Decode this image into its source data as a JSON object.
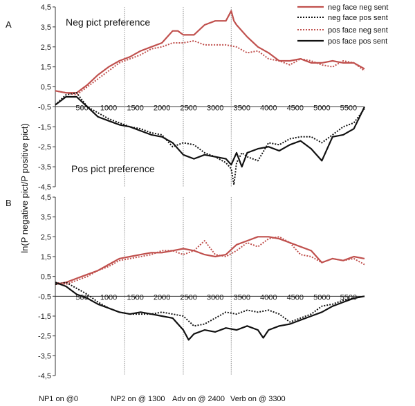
{
  "colors": {
    "red": "#c0504d",
    "black": "#111111",
    "marker": "#9a9a9a"
  },
  "ylabel": "ln(P negative pict/P positive pict)",
  "legend": [
    {
      "label": "neg face neg sent",
      "color": "#c0504d",
      "dash": "solid"
    },
    {
      "label": "neg face pos sent",
      "color": "#111111",
      "dash": "dotted"
    },
    {
      "label": "pos face neg sent",
      "color": "#c0504d",
      "dash": "dotted"
    },
    {
      "label": "pos face pos sent",
      "color": "#111111",
      "dash": "solid"
    }
  ],
  "markers": [
    {
      "x": 0,
      "label": "NP1 on @0"
    },
    {
      "x": 1300,
      "label": "NP2 on @ 1300"
    },
    {
      "x": 2400,
      "label": "Adv on @ 2400"
    },
    {
      "x": 3300,
      "label": "Verb on @ 3300"
    }
  ],
  "chart_data": [
    {
      "panel": "A",
      "type": "line",
      "xlim": [
        0,
        5800
      ],
      "ylim": [
        -4.5,
        4.5
      ],
      "xticks": [
        500,
        1000,
        1500,
        2000,
        2500,
        3000,
        3500,
        4000,
        4500,
        5000,
        5500
      ],
      "xtick_labels": [
        "500",
        "1000",
        "1500",
        "2000",
        "2500",
        "3000",
        "3500",
        "4000",
        "4500",
        "5000",
        "5500"
      ],
      "yticks": [
        4.5,
        3.5,
        2.5,
        1.5,
        0.5,
        -0.5,
        -1.5,
        -2.5,
        -3.5,
        -4.5
      ],
      "ytick_labels": [
        "4,5",
        "3,5",
        "2,5",
        "1,5",
        "0,5",
        "-0,5",
        "-1,5",
        "-2,5",
        "-3,5",
        "-4,5"
      ],
      "annotations": [
        "Neg pict preference",
        "Pos pict preference"
      ],
      "series": [
        {
          "name": "neg face neg sent",
          "color": "#c0504d",
          "dash": "solid",
          "x": [
            0,
            200,
            400,
            600,
            800,
            1000,
            1200,
            1400,
            1600,
            1800,
            2000,
            2200,
            2300,
            2350,
            2400,
            2600,
            2800,
            3000,
            3200,
            3300,
            3350,
            3400,
            3600,
            3800,
            4000,
            4200,
            4400,
            4600,
            4800,
            5000,
            5200,
            5400,
            5600,
            5800
          ],
          "y": [
            0.3,
            0.2,
            0.2,
            0.6,
            1.1,
            1.5,
            1.8,
            2.0,
            2.3,
            2.5,
            2.7,
            3.3,
            3.3,
            3.2,
            3.1,
            3.1,
            3.6,
            3.8,
            3.8,
            4.3,
            3.8,
            3.6,
            3.0,
            2.5,
            2.2,
            1.8,
            1.8,
            1.9,
            1.7,
            1.7,
            1.8,
            1.7,
            1.7,
            1.4
          ]
        },
        {
          "name": "neg face pos sent",
          "color": "#111111",
          "dash": "dotted",
          "x": [
            0,
            200,
            400,
            600,
            800,
            1000,
            1200,
            1400,
            1600,
            1800,
            2000,
            2200,
            2400,
            2600,
            2800,
            3000,
            3200,
            3300,
            3350,
            3400,
            3500,
            3600,
            3800,
            4000,
            4200,
            4400,
            4600,
            4800,
            5000,
            5200,
            5400,
            5600,
            5800
          ],
          "y": [
            -0.4,
            0.1,
            0.2,
            -0.5,
            -0.8,
            -1.1,
            -1.3,
            -1.5,
            -1.6,
            -1.8,
            -1.9,
            -2.5,
            -2.3,
            -2.4,
            -2.8,
            -3.0,
            -3.3,
            -3.6,
            -4.4,
            -3.3,
            -2.8,
            -3.0,
            -3.2,
            -2.3,
            -2.4,
            -2.1,
            -2.0,
            -2.0,
            -2.3,
            -1.9,
            -1.5,
            -1.3,
            -0.6
          ]
        },
        {
          "name": "pos face neg sent",
          "color": "#c0504d",
          "dash": "dotted",
          "x": [
            0,
            200,
            400,
            600,
            800,
            1000,
            1200,
            1400,
            1600,
            1800,
            2000,
            2200,
            2400,
            2600,
            2800,
            3000,
            3200,
            3400,
            3600,
            3800,
            4000,
            4200,
            4400,
            4600,
            4800,
            5000,
            5200,
            5400,
            5600,
            5800
          ],
          "y": [
            0.3,
            0.2,
            0.1,
            0.5,
            0.9,
            1.3,
            1.7,
            1.9,
            2.1,
            2.4,
            2.5,
            2.7,
            2.7,
            2.8,
            2.6,
            2.6,
            2.6,
            2.5,
            2.2,
            2.3,
            1.9,
            1.8,
            1.6,
            1.9,
            1.8,
            1.6,
            1.5,
            1.8,
            1.7,
            1.3
          ]
        },
        {
          "name": "pos face pos sent",
          "color": "#111111",
          "dash": "solid",
          "x": [
            0,
            200,
            400,
            600,
            800,
            1000,
            1200,
            1400,
            1600,
            1800,
            2000,
            2200,
            2400,
            2600,
            2800,
            3000,
            3200,
            3300,
            3400,
            3500,
            3600,
            3800,
            4000,
            4200,
            4400,
            4600,
            4800,
            5000,
            5200,
            5400,
            5600,
            5800
          ],
          "y": [
            -0.4,
            0.0,
            0.0,
            -0.5,
            -1.0,
            -1.2,
            -1.4,
            -1.5,
            -1.7,
            -1.9,
            -2.0,
            -2.3,
            -2.9,
            -3.1,
            -2.9,
            -3.0,
            -3.1,
            -3.4,
            -2.8,
            -3.5,
            -2.8,
            -2.6,
            -2.5,
            -2.7,
            -2.4,
            -2.2,
            -2.6,
            -3.2,
            -2.0,
            -1.9,
            -1.6,
            -0.5
          ]
        }
      ]
    },
    {
      "panel": "B",
      "type": "line",
      "xlim": [
        0,
        5800
      ],
      "ylim": [
        -4.5,
        4.5
      ],
      "xticks": [
        500,
        1000,
        1500,
        2000,
        2500,
        3000,
        3500,
        4000,
        4500,
        5000,
        5500
      ],
      "xtick_labels": [
        "500",
        "1000",
        "1500",
        "2000",
        "2500",
        "3000",
        "3500",
        "4000",
        "4500",
        "5000",
        "5500"
      ],
      "yticks": [
        4.5,
        3.5,
        2.5,
        1.5,
        0.5,
        -0.5,
        -1.5,
        -2.5,
        -3.5,
        -4.5
      ],
      "ytick_labels": [
        "4,5",
        "3,5",
        "2,5",
        "1,5",
        "0,5",
        "-0,5",
        "-1,5",
        "-2,5",
        "-3,5",
        "-4,5"
      ],
      "series": [
        {
          "name": "neg face neg sent",
          "color": "#c0504d",
          "dash": "solid",
          "x": [
            0,
            200,
            400,
            600,
            800,
            1000,
            1200,
            1400,
            1600,
            1800,
            2000,
            2200,
            2400,
            2600,
            2800,
            3000,
            3200,
            3400,
            3600,
            3800,
            4000,
            4200,
            4400,
            4600,
            4800,
            5000,
            5200,
            5400,
            5600,
            5800
          ],
          "y": [
            0.1,
            0.2,
            0.4,
            0.6,
            0.8,
            1.1,
            1.4,
            1.5,
            1.6,
            1.7,
            1.7,
            1.8,
            1.9,
            1.8,
            1.6,
            1.5,
            1.6,
            2.1,
            2.3,
            2.5,
            2.5,
            2.4,
            2.2,
            2.0,
            1.8,
            1.2,
            1.4,
            1.3,
            1.5,
            1.4
          ]
        },
        {
          "name": "neg face pos sent",
          "color": "#111111",
          "dash": "dotted",
          "x": [
            0,
            200,
            400,
            600,
            800,
            1000,
            1200,
            1400,
            1600,
            1800,
            2000,
            2200,
            2400,
            2600,
            2800,
            3000,
            3200,
            3400,
            3600,
            3800,
            4000,
            4200,
            4400,
            4600,
            4800,
            5000,
            5200,
            5400,
            5600,
            5800
          ],
          "y": [
            0.1,
            0.2,
            -0.1,
            -0.4,
            -0.8,
            -1.1,
            -1.3,
            -1.4,
            -1.4,
            -1.4,
            -1.3,
            -1.4,
            -1.5,
            -2.0,
            -1.9,
            -1.6,
            -1.3,
            -1.4,
            -1.2,
            -1.3,
            -1.2,
            -1.4,
            -1.8,
            -1.6,
            -1.4,
            -1.0,
            -0.9,
            -0.7,
            -0.6,
            -0.5
          ]
        },
        {
          "name": "pos face neg sent",
          "color": "#c0504d",
          "dash": "dotted",
          "x": [
            0,
            200,
            400,
            600,
            800,
            1000,
            1200,
            1400,
            1600,
            1800,
            2000,
            2200,
            2400,
            2600,
            2800,
            3000,
            3200,
            3400,
            3600,
            3800,
            4000,
            4200,
            4400,
            4600,
            4800,
            5000,
            5200,
            5400,
            5600,
            5800
          ],
          "y": [
            0.2,
            0.1,
            0.3,
            0.5,
            0.8,
            1.0,
            1.3,
            1.4,
            1.5,
            1.6,
            1.8,
            1.8,
            1.6,
            1.8,
            2.3,
            1.6,
            1.5,
            1.8,
            2.2,
            2.0,
            2.4,
            2.5,
            2.2,
            1.6,
            1.5,
            1.2,
            1.4,
            1.3,
            1.4,
            1.1
          ]
        },
        {
          "name": "pos face pos sent",
          "color": "#111111",
          "dash": "solid",
          "x": [
            0,
            200,
            400,
            600,
            800,
            1000,
            1200,
            1400,
            1600,
            1800,
            2000,
            2200,
            2400,
            2500,
            2600,
            2800,
            3000,
            3200,
            3400,
            3600,
            3800,
            3900,
            4000,
            4200,
            4400,
            4600,
            4800,
            5000,
            5200,
            5400,
            5600,
            5800
          ],
          "y": [
            0.2,
            0.0,
            -0.4,
            -0.6,
            -0.9,
            -1.1,
            -1.3,
            -1.4,
            -1.3,
            -1.4,
            -1.5,
            -1.6,
            -2.2,
            -2.7,
            -2.4,
            -2.2,
            -2.3,
            -2.1,
            -2.2,
            -2.0,
            -2.2,
            -2.6,
            -2.2,
            -2.0,
            -1.9,
            -1.7,
            -1.5,
            -1.3,
            -1.0,
            -0.8,
            -0.6,
            -0.5
          ]
        }
      ]
    }
  ]
}
